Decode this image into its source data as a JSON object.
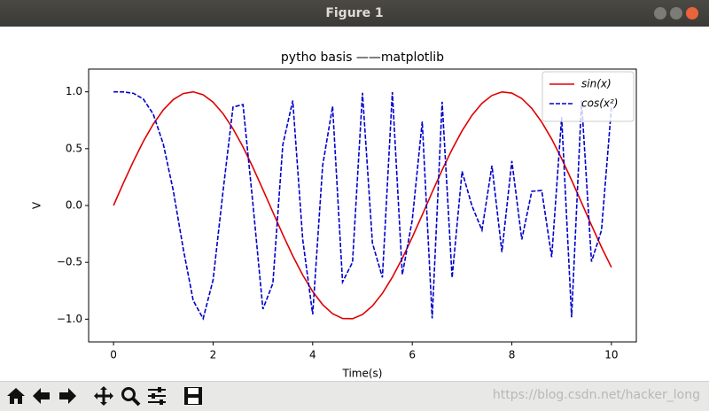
{
  "window": {
    "title": "Figure 1"
  },
  "watermark": "https://blog.csdn.net/hacker_long",
  "chart_data": {
    "type": "line",
    "title": "pytho basis ——matplotlib",
    "xlabel": "Time(s)",
    "ylabel": "V",
    "x": [
      0,
      0.2,
      0.4,
      0.6,
      0.8,
      1,
      1.2,
      1.4,
      1.6,
      1.8,
      2,
      2.2,
      2.4,
      2.6,
      2.8,
      3,
      3.2,
      3.4,
      3.6,
      3.8,
      4,
      4.2,
      4.4,
      4.6,
      4.8,
      5,
      5.2,
      5.4,
      5.6,
      5.8,
      6,
      6.2,
      6.4,
      6.6,
      6.8,
      7,
      7.2,
      7.4,
      7.6,
      7.8,
      8,
      8.2,
      8.4,
      8.6,
      8.8,
      9,
      9.2,
      9.4,
      9.6,
      9.8,
      10
    ],
    "series": [
      {
        "name": "sin(x)",
        "color": "#e00000",
        "dashed": false,
        "values": [
          0,
          0.199,
          0.389,
          0.565,
          0.717,
          0.841,
          0.932,
          0.985,
          1.0,
          0.974,
          0.909,
          0.808,
          0.675,
          0.516,
          0.335,
          0.141,
          -0.058,
          -0.256,
          -0.443,
          -0.612,
          -0.757,
          -0.872,
          -0.952,
          -0.994,
          -0.996,
          -0.959,
          -0.883,
          -0.773,
          -0.631,
          -0.465,
          -0.279,
          -0.083,
          0.117,
          0.312,
          0.494,
          0.657,
          0.794,
          0.899,
          0.968,
          0.999,
          0.989,
          0.941,
          0.855,
          0.734,
          0.585,
          0.412,
          0.223,
          0.025,
          -0.174,
          -0.366,
          -0.544
        ]
      },
      {
        "name": "cos(x²)",
        "color": "#0000cc",
        "dashed": true,
        "values": [
          1,
          0.999,
          0.987,
          0.936,
          0.802,
          0.54,
          0.131,
          -0.38,
          -0.835,
          -0.995,
          -0.654,
          0.127,
          0.866,
          0.888,
          0.014,
          -0.911,
          -0.686,
          0.535,
          0.923,
          -0.299,
          -0.958,
          0.351,
          0.873,
          -0.673,
          -0.499,
          0.991,
          -0.33,
          -0.633,
          0.998,
          -0.608,
          -0.128,
          0.738,
          -0.993,
          0.912,
          -0.635,
          0.3,
          -0.004,
          -0.217,
          0.351,
          -0.409,
          0.392,
          -0.299,
          0.125,
          0.132,
          -0.454,
          0.777,
          -0.983,
          0.923,
          -0.494,
          -0.219,
          0.862
        ]
      }
    ],
    "xlim": [
      -0.5,
      10.5
    ],
    "ylim": [
      -1.2,
      1.2
    ],
    "xticks": [
      0,
      2,
      4,
      6,
      8,
      10
    ],
    "yticks": [
      {
        "value": -1,
        "label": "−1.0"
      },
      {
        "value": -0.5,
        "label": "−0.5"
      },
      {
        "value": 0,
        "label": "0.0"
      },
      {
        "value": 0.5,
        "label": "0.5"
      },
      {
        "value": 1,
        "label": "1.0"
      }
    ],
    "legend": "upper right"
  }
}
